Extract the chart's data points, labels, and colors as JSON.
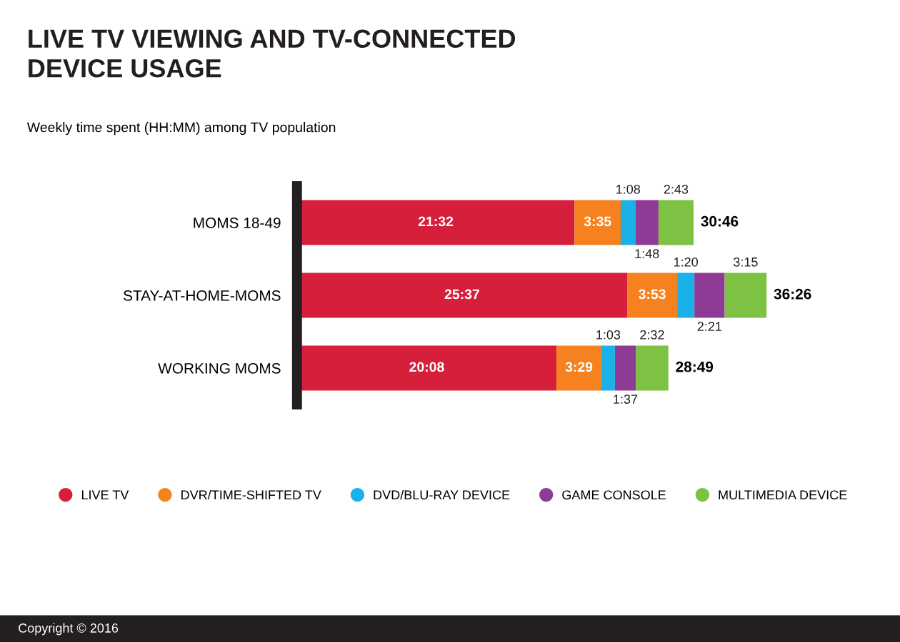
{
  "chart_data": {
    "type": "bar",
    "orientation": "horizontal",
    "stacked": true,
    "title": "LIVE TV VIEWING AND TV-CONNECTED\nDEVICE USAGE",
    "subtitle": "Weekly time spent (HH:MM) among TV population",
    "categories": [
      "MOMS 18-49",
      "STAY-AT-HOME-MOMS",
      "WORKING MOMS"
    ],
    "series": [
      {
        "name": "LIVE TV",
        "color": "#d6203b",
        "values": [
          1292,
          1537,
          1208
        ],
        "value_labels": [
          "21:32",
          "25:37",
          "20:08"
        ]
      },
      {
        "name": "DVR/TIME-SHIFTED TV",
        "color": "#f5821f",
        "values": [
          215,
          233,
          209
        ],
        "value_labels": [
          "3:35",
          "3:53",
          "3:29"
        ]
      },
      {
        "name": "DVD/BLU-RAY DEVICE",
        "color": "#1ab0e8",
        "values": [
          68,
          80,
          63
        ],
        "value_labels": [
          "1:08",
          "1:20",
          "1:03"
        ]
      },
      {
        "name": "GAME CONSOLE",
        "color": "#8e3b96",
        "values": [
          108,
          141,
          97
        ],
        "value_labels": [
          "1:48",
          "2:21",
          "1:37"
        ]
      },
      {
        "name": "MULTIMEDIA DEVICE",
        "color": "#7dc242",
        "values": [
          163,
          195,
          152
        ],
        "value_labels": [
          "2:43",
          "3:15",
          "2:32"
        ]
      }
    ],
    "totals": [
      "30:46",
      "36:26",
      "28:49"
    ],
    "legend": "bottom",
    "annotations": [
      "Copyright © 2016"
    ]
  }
}
